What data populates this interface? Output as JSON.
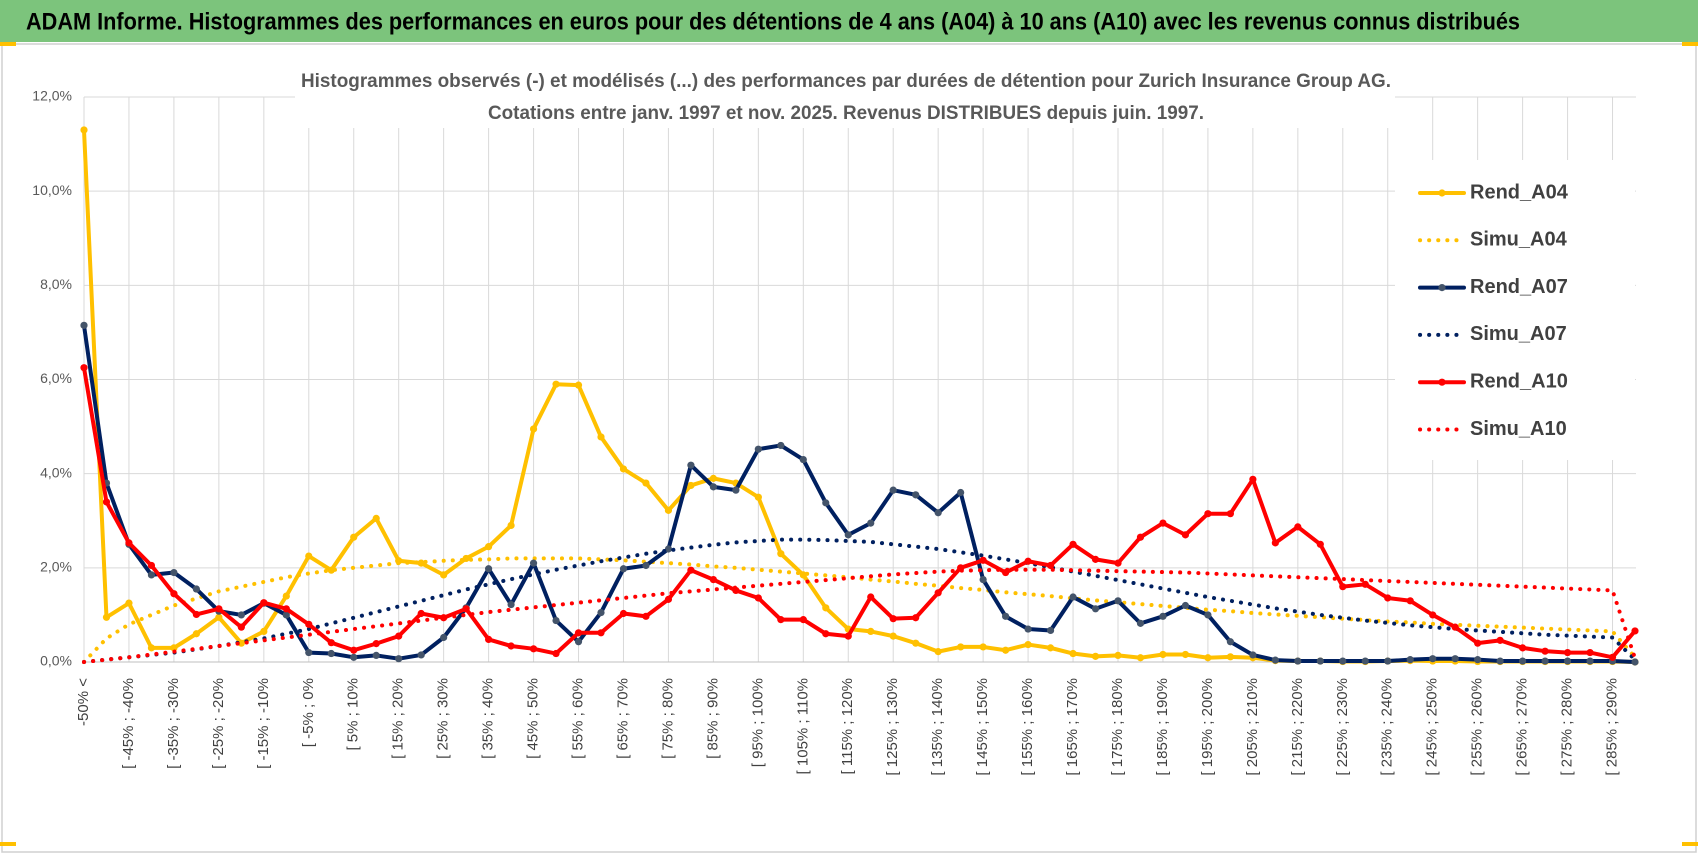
{
  "header": "ADAM Informe. Histogrammes des performances en euros pour des détentions de 4 ans (A04) à 10 ans (A10) avec les revenus connus distribués",
  "chart_data": {
    "type": "line",
    "title": "Histogrammes observés (-) et modélisés (...) des performances par durées de détention pour Zurich Insurance Group AG.",
    "subtitle": "Cotations entre janv. 1997 et nov. 2025. Revenus DISTRIBUES depuis juin. 1997.",
    "categories": [
      "-50% <",
      null,
      "[ -45% ; -40%",
      null,
      "[ -35% ; -30%",
      null,
      "[ -25% ; -20%",
      null,
      "[ -15% ; -10%",
      null,
      "[ -5% ; 0%",
      null,
      "[ 5% ; 10%",
      null,
      "[ 15% ; 20%",
      null,
      "[ 25% ; 30%",
      null,
      "[ 35% ; 40%",
      null,
      "[ 45% ; 50%",
      null,
      "[ 55% ; 60%",
      null,
      "[ 65% ; 70%",
      null,
      "[ 75% ; 80%",
      null,
      "[ 85% ; 90%",
      null,
      "[ 95% ; 100%",
      null,
      "[ 105% ; 110%",
      null,
      "[ 115% ; 120%",
      null,
      "[ 125% ; 130%",
      null,
      "[ 135% ; 140%",
      null,
      "[ 145% ; 150%",
      null,
      "[ 155% ; 160%",
      null,
      "[ 165% ; 170%",
      null,
      "[ 175% ; 180%",
      null,
      "[ 185% ; 190%",
      null,
      "[ 195% ; 200%",
      null,
      "[ 205% ; 210%",
      null,
      "[ 215% ; 220%",
      null,
      "[ 225% ; 230%",
      null,
      "[ 235% ; 240%",
      null,
      "[ 245% ; 250%",
      null,
      "[ 255% ; 260%",
      null,
      "[ 265% ; 270%",
      null,
      "[ 275% ; 280%",
      null,
      "[ 285% ; 290%",
      null
    ],
    "series": [
      {
        "name": "Rend_A04",
        "color": "#FFC000",
        "line_style": "solid",
        "marker": true,
        "values": [
          11.3,
          0.95,
          1.25,
          0.3,
          0.3,
          0.6,
          0.95,
          0.4,
          0.65,
          1.4,
          2.25,
          1.95,
          2.65,
          3.05,
          2.15,
          2.1,
          1.85,
          2.2,
          2.45,
          2.9,
          4.95,
          5.9,
          5.88,
          4.78,
          4.1,
          3.8,
          3.22,
          3.75,
          3.9,
          3.8,
          3.5,
          2.3,
          1.85,
          1.15,
          0.7,
          0.65,
          0.55,
          0.4,
          0.22,
          0.32,
          0.32,
          0.25,
          0.37,
          0.3,
          0.18,
          0.12,
          0.14,
          0.09,
          0.16,
          0.16,
          0.09,
          0.11,
          0.09,
          0.03,
          0.02,
          0.02,
          0.01,
          0.01,
          0.02,
          0.03,
          0.02,
          0.02,
          0.01,
          0.01,
          0.01,
          0.01,
          0.01,
          0.01,
          0.01,
          0.0
        ]
      },
      {
        "name": "Simu_A04",
        "color": "#FFC000",
        "line_style": "dotted",
        "marker": false,
        "values": [
          0.0,
          0.5,
          0.8,
          1.0,
          1.2,
          1.35,
          1.5,
          1.6,
          1.7,
          1.8,
          1.88,
          1.95,
          2.0,
          2.05,
          2.1,
          2.12,
          2.15,
          2.17,
          2.18,
          2.2,
          2.2,
          2.2,
          2.2,
          2.18,
          2.16,
          2.13,
          2.1,
          2.07,
          2.03,
          2.0,
          1.96,
          1.92,
          1.88,
          1.84,
          1.8,
          1.75,
          1.71,
          1.66,
          1.62,
          1.57,
          1.53,
          1.48,
          1.44,
          1.4,
          1.35,
          1.31,
          1.27,
          1.23,
          1.19,
          1.15,
          1.11,
          1.08,
          1.04,
          1.01,
          0.98,
          0.95,
          0.92,
          0.89,
          0.86,
          0.84,
          0.81,
          0.79,
          0.77,
          0.75,
          0.73,
          0.71,
          0.69,
          0.67,
          0.65,
          0.1
        ]
      },
      {
        "name": "Rend_A07",
        "color": "#002060",
        "line_style": "solid",
        "marker": true,
        "marker_color": "#44546A",
        "values": [
          7.15,
          3.8,
          2.5,
          1.85,
          1.9,
          1.55,
          1.08,
          1.0,
          1.25,
          1.0,
          0.2,
          0.18,
          0.1,
          0.14,
          0.07,
          0.15,
          0.52,
          1.15,
          1.98,
          1.22,
          2.1,
          0.88,
          0.43,
          1.05,
          1.98,
          2.05,
          2.4,
          4.18,
          3.72,
          3.65,
          4.52,
          4.6,
          4.3,
          3.38,
          2.7,
          2.95,
          3.65,
          3.55,
          3.17,
          3.6,
          1.75,
          0.97,
          0.7,
          0.67,
          1.38,
          1.13,
          1.3,
          0.82,
          0.97,
          1.2,
          1.0,
          0.43,
          0.15,
          0.04,
          0.02,
          0.02,
          0.02,
          0.02,
          0.02,
          0.05,
          0.07,
          0.07,
          0.05,
          0.02,
          0.02,
          0.02,
          0.02,
          0.02,
          0.02,
          0.0
        ]
      },
      {
        "name": "Simu_A07",
        "color": "#002060",
        "line_style": "dotted",
        "marker": false,
        "values": [
          0.0,
          0.05,
          0.1,
          0.15,
          0.2,
          0.27,
          0.34,
          0.42,
          0.5,
          0.6,
          0.7,
          0.82,
          0.94,
          1.06,
          1.18,
          1.3,
          1.42,
          1.54,
          1.65,
          1.76,
          1.86,
          1.96,
          2.05,
          2.14,
          2.22,
          2.3,
          2.37,
          2.43,
          2.49,
          2.54,
          2.57,
          2.6,
          2.6,
          2.59,
          2.57,
          2.55,
          2.5,
          2.45,
          2.4,
          2.33,
          2.26,
          2.18,
          2.1,
          2.01,
          1.92,
          1.83,
          1.74,
          1.65,
          1.56,
          1.47,
          1.38,
          1.3,
          1.22,
          1.14,
          1.07,
          1.0,
          0.94,
          0.88,
          0.83,
          0.78,
          0.74,
          0.7,
          0.67,
          0.64,
          0.61,
          0.58,
          0.56,
          0.54,
          0.52,
          0.05
        ]
      },
      {
        "name": "Rend_A10",
        "color": "#FF0000",
        "line_style": "solid",
        "marker": true,
        "values": [
          6.25,
          3.4,
          2.53,
          2.05,
          1.45,
          1.01,
          1.13,
          0.74,
          1.26,
          1.13,
          0.8,
          0.41,
          0.25,
          0.39,
          0.55,
          1.03,
          0.94,
          1.13,
          0.48,
          0.34,
          0.28,
          0.18,
          0.62,
          0.62,
          1.03,
          0.97,
          1.33,
          1.95,
          1.75,
          1.52,
          1.36,
          0.9,
          0.9,
          0.6,
          0.55,
          1.38,
          0.92,
          0.94,
          1.47,
          2.0,
          2.16,
          1.9,
          2.14,
          2.05,
          2.5,
          2.18,
          2.1,
          2.65,
          2.95,
          2.7,
          3.15,
          3.15,
          3.88,
          2.53,
          2.87,
          2.5,
          1.6,
          1.65,
          1.36,
          1.3,
          1.0,
          0.74,
          0.4,
          0.46,
          0.3,
          0.23,
          0.2,
          0.2,
          0.1,
          0.66
        ]
      },
      {
        "name": "Simu_A10",
        "color": "#FF0000",
        "line_style": "dotted",
        "marker": false,
        "values": [
          0.0,
          0.05,
          0.1,
          0.16,
          0.22,
          0.28,
          0.34,
          0.4,
          0.46,
          0.52,
          0.58,
          0.64,
          0.7,
          0.76,
          0.82,
          0.88,
          0.94,
          1.0,
          1.06,
          1.11,
          1.16,
          1.21,
          1.26,
          1.31,
          1.36,
          1.41,
          1.46,
          1.5,
          1.54,
          1.58,
          1.62,
          1.66,
          1.7,
          1.74,
          1.78,
          1.82,
          1.86,
          1.89,
          1.92,
          1.94,
          1.95,
          1.96,
          1.96,
          1.96,
          1.95,
          1.94,
          1.93,
          1.92,
          1.91,
          1.9,
          1.88,
          1.86,
          1.84,
          1.82,
          1.8,
          1.78,
          1.76,
          1.74,
          1.72,
          1.7,
          1.68,
          1.66,
          1.64,
          1.62,
          1.6,
          1.58,
          1.56,
          1.54,
          1.52,
          0.08
        ]
      }
    ],
    "ylim": [
      0,
      12
    ],
    "yticks": [
      {
        "value": 0,
        "label": "0,0%"
      },
      {
        "value": 2,
        "label": "2,0%"
      },
      {
        "value": 4,
        "label": "4,0%"
      },
      {
        "value": 6,
        "label": "6,0%"
      },
      {
        "value": 8,
        "label": "8,0%"
      },
      {
        "value": 10,
        "label": "10,0%"
      },
      {
        "value": 12,
        "label": "12,0%"
      }
    ],
    "grid": true,
    "legend": "right"
  }
}
